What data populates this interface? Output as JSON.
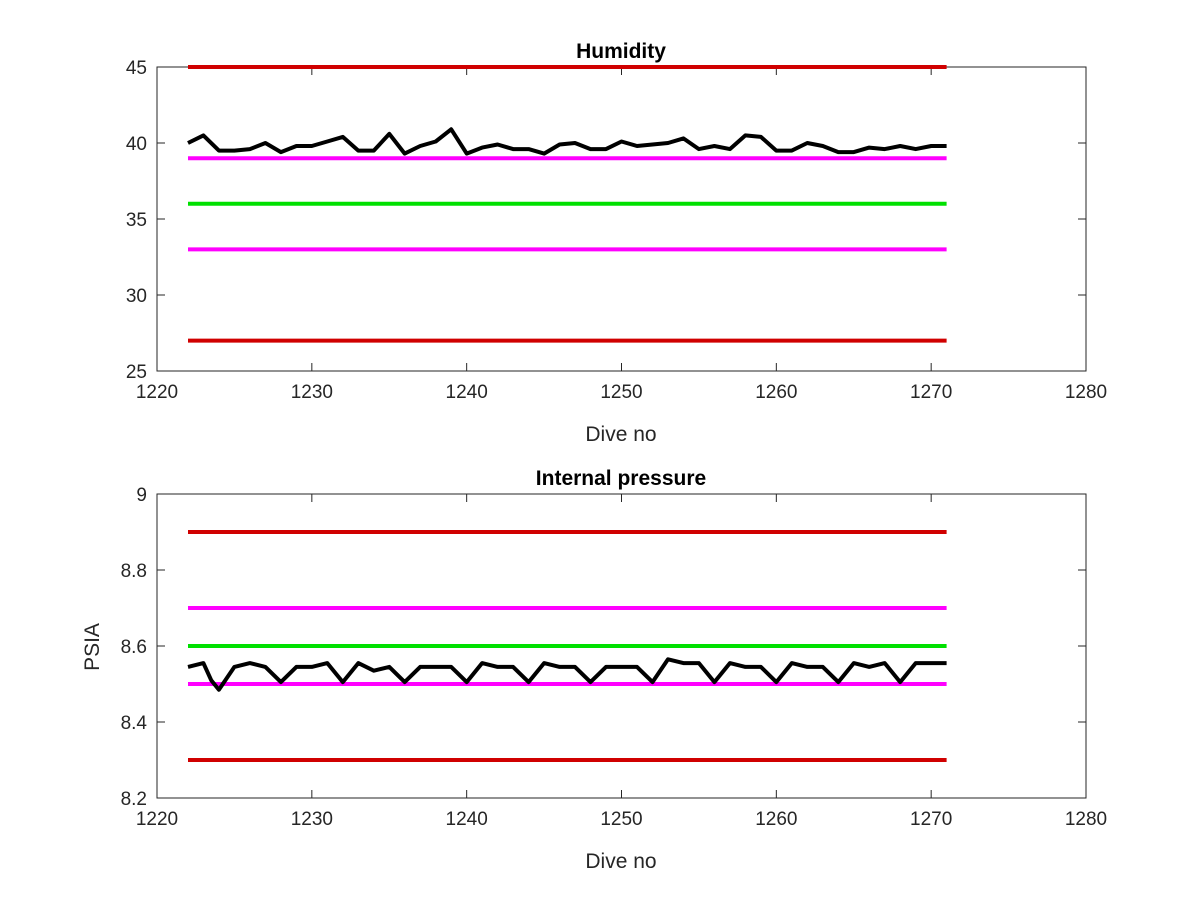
{
  "chart_data": [
    {
      "type": "line",
      "title": "Humidity",
      "xlabel": "Dive no",
      "ylabel": "",
      "xlim": [
        1220,
        1280
      ],
      "ylim": [
        25,
        45
      ],
      "xticks": [
        "1220",
        "1230",
        "1240",
        "1250",
        "1260",
        "1270",
        "1280"
      ],
      "yticks": [
        "25",
        "30",
        "35",
        "40",
        "45"
      ],
      "series": [
        {
          "color": "#d00000",
          "x": [
            1222,
            1271
          ],
          "y": [
            45,
            45
          ]
        },
        {
          "color": "#ff00ff",
          "x": [
            1222,
            1271
          ],
          "y": [
            39,
            39
          ]
        },
        {
          "color": "#00e000",
          "x": [
            1222,
            1271
          ],
          "y": [
            36,
            36
          ]
        },
        {
          "color": "#ff00ff",
          "x": [
            1222,
            1271
          ],
          "y": [
            33,
            33
          ]
        },
        {
          "color": "#d00000",
          "x": [
            1222,
            1271
          ],
          "y": [
            27,
            27
          ]
        },
        {
          "color": "#000000",
          "x": [
            1222,
            1223,
            1224,
            1225,
            1226,
            1227,
            1228,
            1229,
            1230,
            1231,
            1232,
            1233,
            1234,
            1235,
            1236,
            1237,
            1238,
            1239,
            1240,
            1241,
            1242,
            1243,
            1244,
            1245,
            1246,
            1247,
            1248,
            1249,
            1250,
            1251,
            1252,
            1253,
            1254,
            1255,
            1256,
            1257,
            1258,
            1259,
            1260,
            1261,
            1262,
            1263,
            1264,
            1265,
            1266,
            1267,
            1268,
            1269,
            1270,
            1271
          ],
          "y": [
            40.0,
            40.5,
            39.5,
            39.5,
            39.6,
            40.0,
            39.4,
            39.8,
            39.8,
            40.1,
            40.4,
            39.5,
            39.5,
            40.6,
            39.3,
            39.8,
            40.1,
            40.9,
            39.3,
            39.7,
            39.9,
            39.6,
            39.6,
            39.3,
            39.9,
            40.0,
            39.6,
            39.6,
            40.1,
            39.8,
            39.9,
            40.0,
            40.3,
            39.6,
            39.8,
            39.6,
            40.5,
            40.4,
            39.5,
            39.5,
            40.0,
            39.8,
            39.4,
            39.4,
            39.7,
            39.6,
            39.8,
            39.6,
            39.8,
            39.8
          ]
        }
      ]
    },
    {
      "type": "line",
      "title": "Internal pressure",
      "xlabel": "Dive no",
      "ylabel": "PSIA",
      "xlim": [
        1220,
        1280
      ],
      "ylim": [
        8.2,
        9.0
      ],
      "xticks": [
        "1220",
        "1230",
        "1240",
        "1250",
        "1260",
        "1270",
        "1280"
      ],
      "yticks": [
        "8.2",
        "8.4",
        "8.6",
        "8.8",
        "9"
      ],
      "series": [
        {
          "color": "#d00000",
          "x": [
            1222,
            1271
          ],
          "y": [
            8.9,
            8.9
          ]
        },
        {
          "color": "#ff00ff",
          "x": [
            1222,
            1271
          ],
          "y": [
            8.7,
            8.7
          ]
        },
        {
          "color": "#00e000",
          "x": [
            1222,
            1271
          ],
          "y": [
            8.6,
            8.6
          ]
        },
        {
          "color": "#ff00ff",
          "x": [
            1222,
            1271
          ],
          "y": [
            8.5,
            8.5
          ]
        },
        {
          "color": "#d00000",
          "x": [
            1222,
            1271
          ],
          "y": [
            8.3,
            8.3
          ]
        },
        {
          "color": "#000000",
          "x": [
            1222,
            1223,
            1223.5,
            1224,
            1225,
            1226,
            1227,
            1228,
            1229,
            1230,
            1231,
            1232,
            1233,
            1234,
            1235,
            1236,
            1237,
            1238,
            1239,
            1240,
            1241,
            1242,
            1243,
            1244,
            1245,
            1246,
            1247,
            1248,
            1249,
            1250,
            1251,
            1252,
            1253,
            1254,
            1255,
            1256,
            1257,
            1258,
            1259,
            1260,
            1261,
            1262,
            1263,
            1264,
            1265,
            1266,
            1267,
            1268,
            1269,
            1270,
            1271
          ],
          "y": [
            8.545,
            8.555,
            8.51,
            8.485,
            8.545,
            8.555,
            8.545,
            8.505,
            8.545,
            8.545,
            8.555,
            8.505,
            8.555,
            8.535,
            8.545,
            8.505,
            8.545,
            8.545,
            8.545,
            8.505,
            8.555,
            8.545,
            8.545,
            8.505,
            8.555,
            8.545,
            8.545,
            8.505,
            8.545,
            8.545,
            8.545,
            8.505,
            8.565,
            8.555,
            8.555,
            8.505,
            8.555,
            8.545,
            8.545,
            8.505,
            8.555,
            8.545,
            8.545,
            8.505,
            8.555,
            8.545,
            8.555,
            8.505,
            8.555,
            8.555,
            8.555
          ]
        }
      ]
    }
  ]
}
